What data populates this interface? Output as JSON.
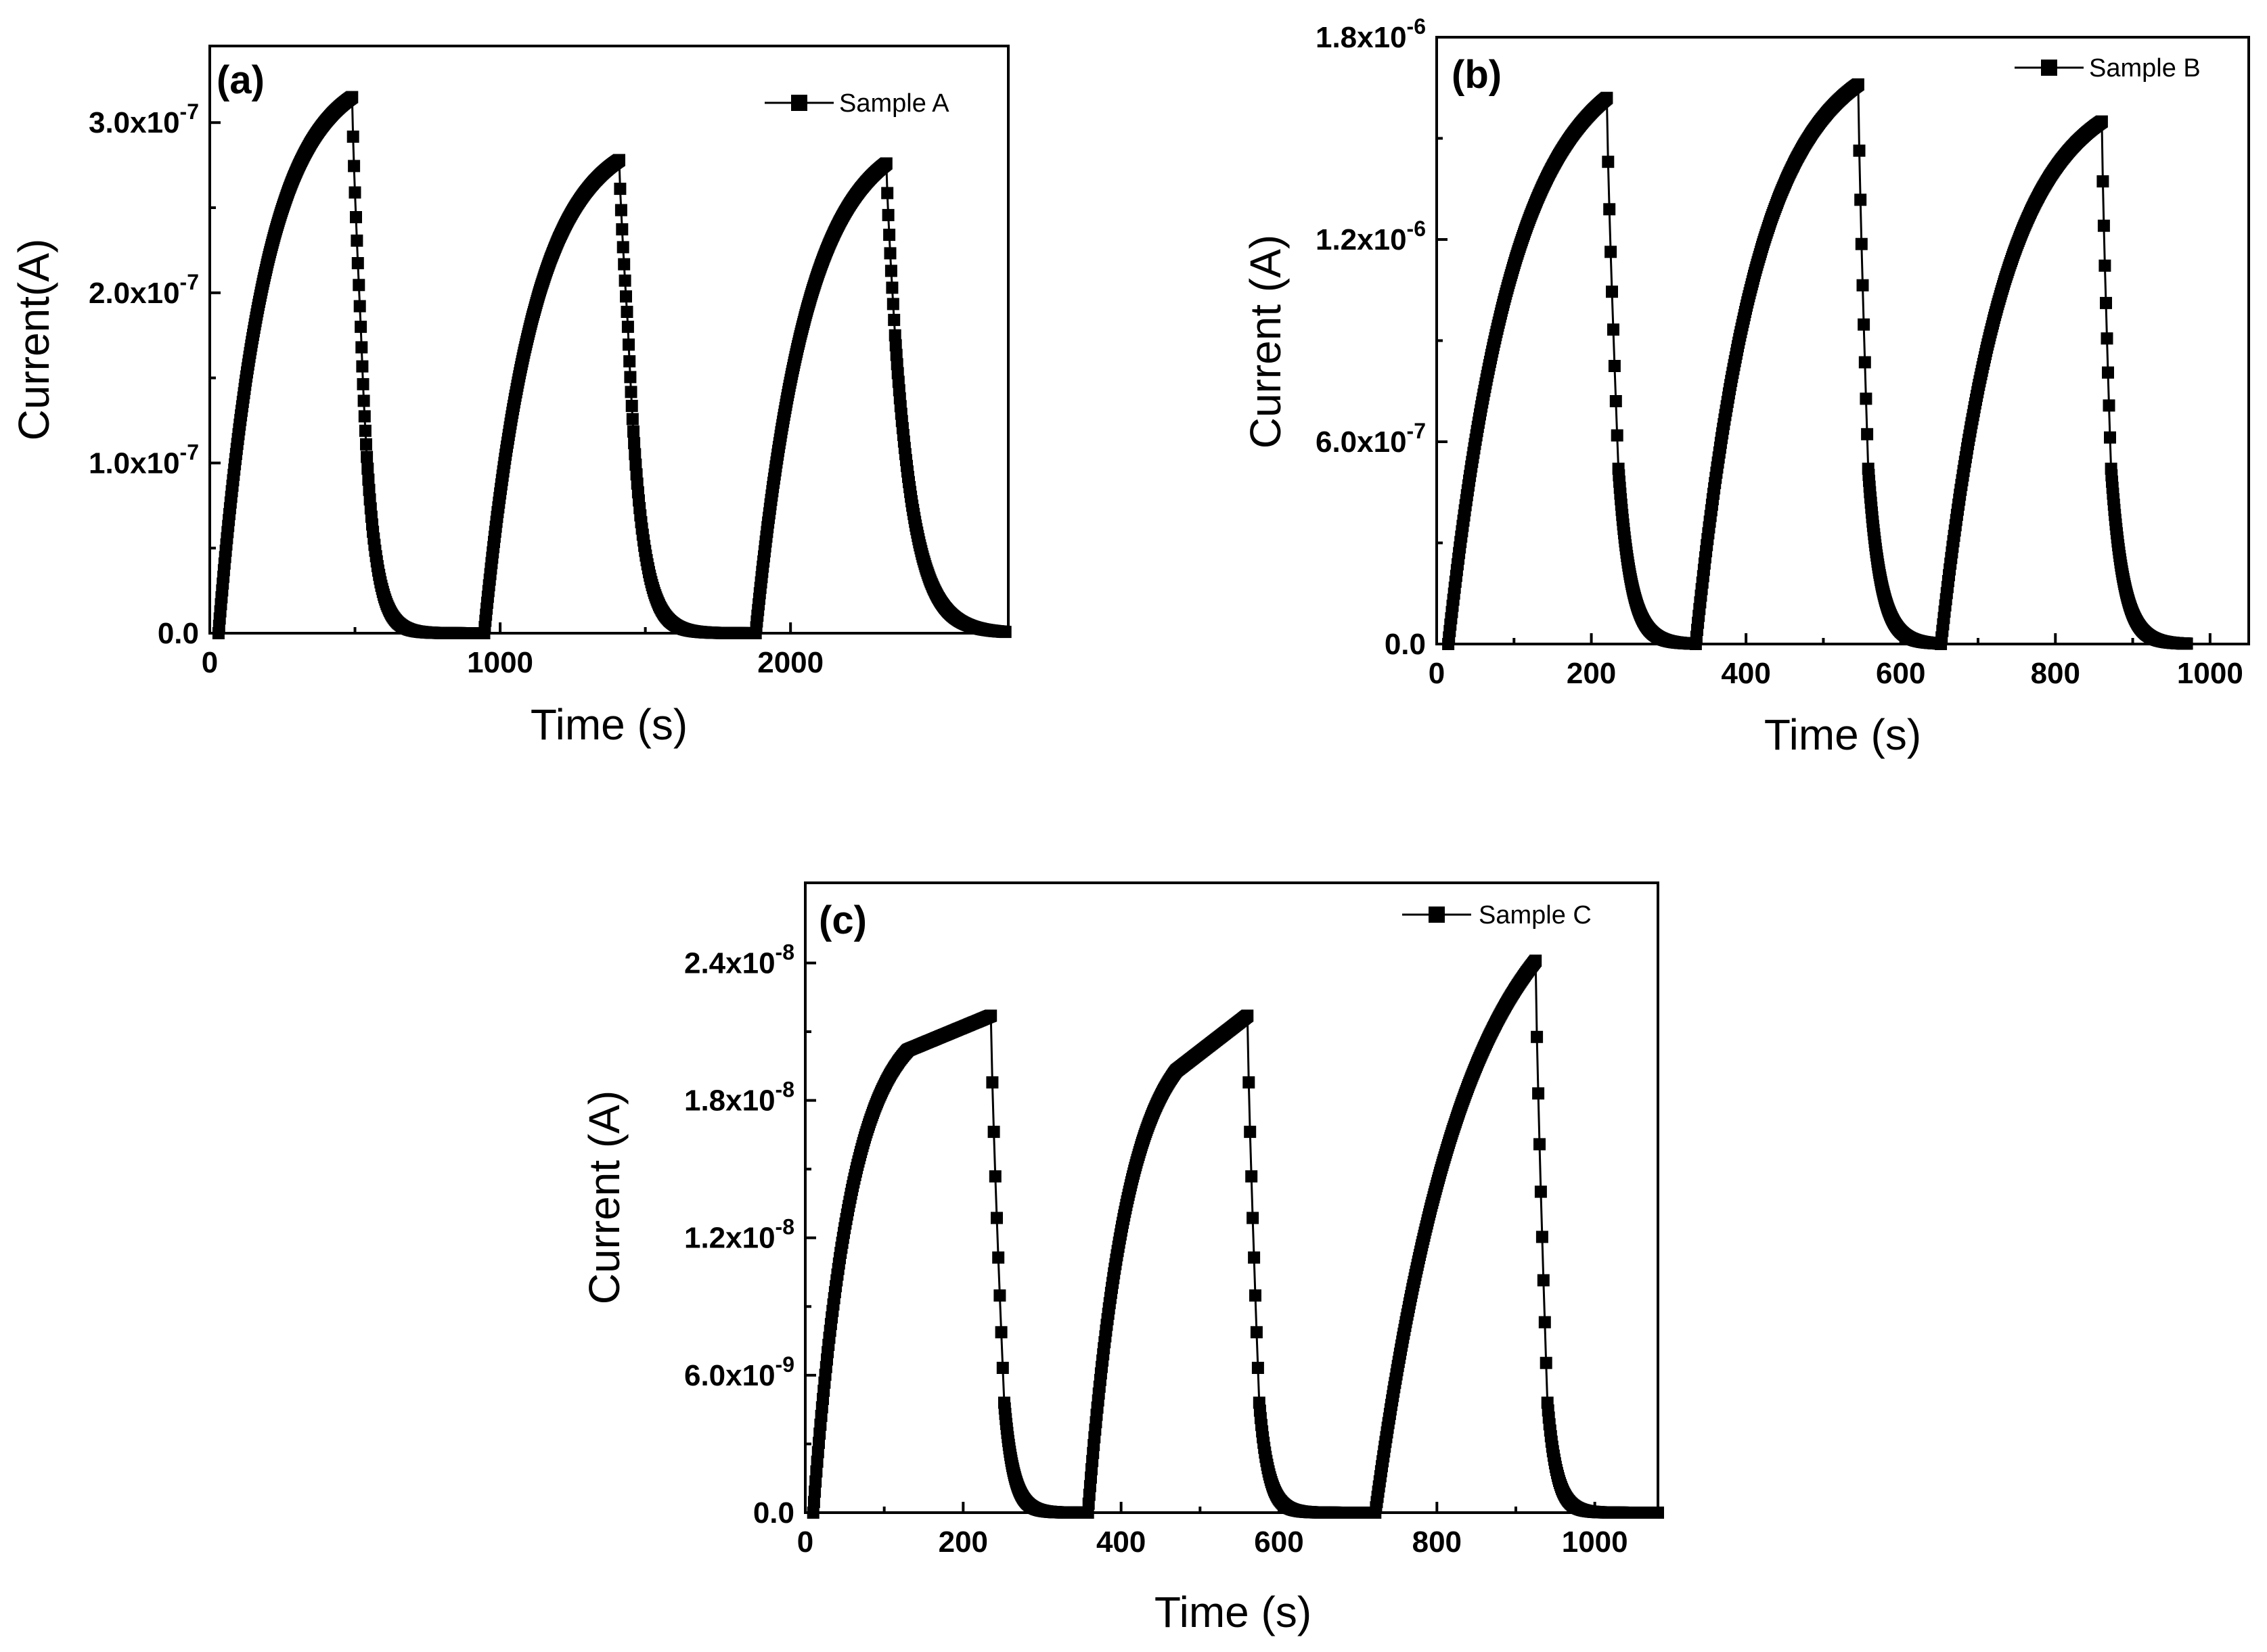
{
  "chart_data": [
    {
      "type": "line",
      "panel": "(a)",
      "legend": "Sample A",
      "xlabel": "Time (s)",
      "ylabel": "Current(A)",
      "xlim": [
        0,
        2750
      ],
      "ylim": [
        0,
        3.45e-07
      ],
      "xticks": [
        0,
        1000,
        2000
      ],
      "xtick_labels": [
        "0",
        "1000",
        "2000"
      ],
      "yticks": [
        0,
        1e-07,
        2e-07,
        3e-07
      ],
      "ytick_labels": [
        {
          "mantissa": "0.0",
          "exp": ""
        },
        {
          "mantissa": "1.0x10",
          "exp": "-7"
        },
        {
          "mantissa": "2.0x10",
          "exp": "-7"
        },
        {
          "mantissa": "3.0x10",
          "exp": "-7"
        }
      ],
      "cycles": [
        {
          "on_start": 30,
          "on_end": 490,
          "peak": 3.15e-07,
          "tau_rise": 160,
          "drop_end": 520,
          "drop_to": 1.8e-07,
          "off_end": 940,
          "tau_decay": 38,
          "plateau_start": 0
        },
        {
          "on_start": 945,
          "on_end": 1410,
          "peak": 2.78e-07,
          "tau_rise": 170,
          "drop_end": 1440,
          "drop_to": 1.8e-07,
          "off_end": 1870,
          "tau_decay": 45,
          "plateau_start": 0
        },
        {
          "on_start": 1880,
          "on_end": 2330,
          "peak": 2.76e-07,
          "tau_rise": 175,
          "drop_end": 2360,
          "drop_to": 1.75e-07,
          "off_end": 2740,
          "tau_decay": 70,
          "plateau_start": 0
        }
      ]
    },
    {
      "type": "line",
      "panel": "(b)",
      "legend": "Sample B",
      "xlabel": "Time (s)",
      "ylabel": "Current (A)",
      "xlim": [
        0,
        1050
      ],
      "ylim": [
        0,
        1.8e-06
      ],
      "xticks": [
        0,
        200,
        400,
        600,
        800,
        1000
      ],
      "xtick_labels": [
        "0",
        "200",
        "400",
        "600",
        "800",
        "1000"
      ],
      "yticks": [
        0,
        6e-07,
        1.2e-06,
        1.8e-06
      ],
      "ytick_labels": [
        {
          "mantissa": "0.0",
          "exp": ""
        },
        {
          "mantissa": "6.0x10",
          "exp": "-7"
        },
        {
          "mantissa": "1.2x10",
          "exp": "-6"
        },
        {
          "mantissa": "1.8x10",
          "exp": "-6"
        }
      ],
      "cycles": [
        {
          "on_start": 15,
          "on_end": 220,
          "peak": 1.62e-06,
          "tau_rise": 85,
          "drop_end": 235,
          "drop_to": 5.2e-07,
          "off_end": 333,
          "tau_decay": 16,
          "plateau_start": 0
        },
        {
          "on_start": 335,
          "on_end": 545,
          "peak": 1.66e-06,
          "tau_rise": 80,
          "drop_end": 558,
          "drop_to": 5.2e-07,
          "off_end": 650,
          "tau_decay": 16,
          "plateau_start": 0
        },
        {
          "on_start": 652,
          "on_end": 860,
          "peak": 1.55e-06,
          "tau_rise": 80,
          "drop_end": 872,
          "drop_to": 5.2e-07,
          "off_end": 970,
          "tau_decay": 16,
          "plateau_start": 0
        }
      ]
    },
    {
      "type": "line",
      "panel": "(c)",
      "legend": "Sample C",
      "xlabel": "Time (s)",
      "ylabel": "Current (A)",
      "xlim": [
        0,
        1080
      ],
      "ylim": [
        0,
        2.75e-08
      ],
      "xticks": [
        0,
        200,
        400,
        600,
        800,
        1000
      ],
      "xtick_labels": [
        "0",
        "200",
        "400",
        "600",
        "800",
        "1000"
      ],
      "yticks": [
        0,
        6e-09,
        1.2e-08,
        1.8e-08,
        2.4e-08
      ],
      "ytick_labels": [
        {
          "mantissa": "0.0",
          "exp": ""
        },
        {
          "mantissa": "6.0x10",
          "exp": "-9"
        },
        {
          "mantissa": "1.2x10",
          "exp": "-8"
        },
        {
          "mantissa": "1.8x10",
          "exp": "-8"
        },
        {
          "mantissa": "2.4x10",
          "exp": "-8"
        }
      ],
      "cycles": [
        {
          "on_start": 10,
          "on_end": 235,
          "peak": 2.17e-08,
          "tau_rise": 48,
          "drop_end": 252,
          "drop_to": 4.8e-09,
          "off_end": 355,
          "tau_decay": 12,
          "plateau_start": 130,
          "plateau_value": 2.02e-08
        },
        {
          "on_start": 358,
          "on_end": 560,
          "peak": 2.17e-08,
          "tau_rise": 50,
          "drop_end": 575,
          "drop_to": 4.8e-09,
          "off_end": 720,
          "tau_decay": 12,
          "plateau_start": 470,
          "plateau_value": 1.93e-08
        },
        {
          "on_start": 722,
          "on_end": 925,
          "peak": 2.41e-08,
          "tau_rise": 115,
          "drop_end": 940,
          "drop_to": 4.8e-09,
          "off_end": 1080,
          "tau_decay": 12,
          "plateau_start": 0
        }
      ]
    }
  ]
}
